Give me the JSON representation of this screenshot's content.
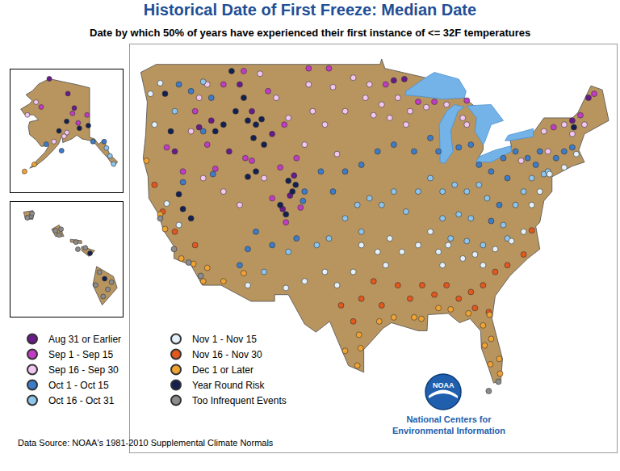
{
  "chart_data": [
    {
      "type": "scatter",
      "title": "Historical Date of First Freeze: Median Date",
      "subtitle": "Date by which 50% of years have experienced their first instance of <= 32F temperatures",
      "xlim": [
        -126,
        -66
      ],
      "ylim": [
        20,
        50.5
      ],
      "tick_labels": false,
      "grid": false,
      "legend": "bottom left",
      "marker": "circle",
      "source": "Data Source: NOAA's 1981-2010 Supplemental Climate Normals",
      "logo": {
        "text": "NOAA",
        "caption": [
          "National Centers for",
          "Environmental Information"
        ]
      },
      "series": [
        {
          "name": "Aug 31 or Earlier",
          "color": "#6a1b8a",
          "x": [
            -112.5,
            -111,
            -107.2,
            -106.3,
            -108.5,
            -116,
            -120.5,
            -117.5,
            -105.8,
            -93.5,
            -92.2,
            -71.5,
            -69.5,
            -113.8
          ],
          "y": [
            47.5,
            45.5,
            38.2,
            39.2,
            43.8,
            44.8,
            42.5,
            44.3,
            40.7,
            47.8,
            47.9,
            44.8,
            46.5,
            42.5
          ]
        },
        {
          "name": "Sep 1 - Sep 15",
          "color": "#c23bc4",
          "x": [
            -114.5,
            -112,
            -109,
            -107,
            -105.5,
            -107.5,
            -111.8,
            -116.5,
            -119.5,
            -121.5,
            -118,
            -106.8,
            -108.5,
            -105,
            -94.5,
            -90.5,
            -88.5,
            -84.5,
            -73.8,
            -68.8,
            -70.5,
            -101.5,
            -104,
            -111,
            -115.5
          ],
          "y": [
            47.5,
            48.5,
            47,
            44.5,
            42,
            41.3,
            42,
            43,
            41,
            42.8,
            45.5,
            37.2,
            39,
            38.3,
            47.5,
            46.2,
            46.2,
            46.3,
            44.3,
            46.8,
            45.2,
            48.7,
            48.7,
            41.8,
            41.2
          ]
        },
        {
          "name": "Sep 16 - Sep 30",
          "color": "#f2c6f0",
          "x": [
            -104,
            -101,
            -98.5,
            -97,
            -99.5,
            -102,
            -103.5,
            -96.5,
            -95,
            -93,
            -91.5,
            -89.5,
            -87,
            -85,
            -84.5,
            -72.5,
            -71.5,
            -70,
            -75,
            -74.5,
            -106.5,
            -108,
            -110,
            -116.5,
            -117.5,
            -118.5,
            -117,
            -114.5,
            -112.5,
            -109.5,
            -104.5,
            -100.5,
            -96,
            -94,
            -92,
            -77.8
          ],
          "y": [
            47.5,
            47.3,
            48,
            46.5,
            45.5,
            44.5,
            45.5,
            47.5,
            46,
            46.5,
            45.5,
            45.8,
            46,
            45,
            44.5,
            44.5,
            43.8,
            44.5,
            44,
            42.5,
            45,
            46.5,
            48.3,
            47.5,
            46.5,
            44,
            40.5,
            39.5,
            38.5,
            40.5,
            43,
            42.3,
            45.2,
            45,
            44.5,
            41.8
          ]
        },
        {
          "name": "Oct 1 - Oct 15",
          "color": "#3d7cc9",
          "x": [
            -99.5,
            -97.5,
            -95.5,
            -93.5,
            -91,
            -89,
            -88,
            -85.5,
            -84,
            -83,
            -81.5,
            -80,
            -78.5,
            -77,
            -76,
            -75.5,
            -73.5,
            -72.5,
            -71.5,
            -79.5,
            -80.5,
            -81.5,
            -102.5,
            -101,
            -104.5,
            -104.7,
            -105.5,
            -108.5,
            -111.5,
            -112.5,
            -120,
            -118.5,
            -116,
            -119.5,
            -115.8,
            -117,
            -110.5
          ],
          "y": [
            41,
            41.5,
            42.5,
            43,
            42.5,
            43.5,
            42.5,
            42.8,
            43,
            41.5,
            41,
            42,
            42.5,
            42,
            41.5,
            42.5,
            42,
            42.5,
            42.8,
            40.5,
            38.5,
            37.3,
            41,
            39.5,
            39.5,
            38.8,
            36,
            35.5,
            35.2,
            34,
            47.5,
            47,
            46.5,
            40.2,
            40.8,
            44,
            36.5
          ]
        },
        {
          "name": "Oct 16 - Oct 31",
          "color": "#8ec5ec",
          "x": [
            -98,
            -96.5,
            -95,
            -93.5,
            -92,
            -90.5,
            -89,
            -87.5,
            -86,
            -84.5,
            -83,
            -82,
            -85.5,
            -87.5,
            -84,
            -80,
            -78.5,
            -77.5,
            -76.5,
            -75,
            -74.5,
            -97.5,
            -99.5,
            -101.5,
            -103,
            -106.5,
            -109.5,
            -120.5,
            -117,
            -86.5,
            -84.5,
            -82.5,
            -79.5
          ],
          "y": [
            38.5,
            39,
            38.5,
            39.5,
            38,
            39.5,
            40.5,
            39.5,
            40,
            39.5,
            40,
            39,
            37.8,
            37.5,
            37.5,
            37,
            38.5,
            39.5,
            40.5,
            40.8,
            41,
            36.5,
            37.5,
            36,
            35.5,
            35,
            33.5,
            45.5,
            47.7,
            36,
            35.8,
            35.5,
            36
          ]
        },
        {
          "name": "Nov 1 - Nov 15",
          "color": "#e2f1fb",
          "x": [
            -97.5,
            -95.5,
            -94,
            -92.5,
            -90.5,
            -89,
            -88,
            -86.8,
            -85,
            -83.5,
            -81,
            -79,
            -77.5,
            -76.5,
            -75.5,
            -74.3,
            -72.5,
            -71,
            -98.5,
            -100.5,
            -102,
            -104.5,
            -106.8,
            -111.5,
            -123,
            -123.5,
            -122.3,
            -121.5,
            -120,
            -94.5,
            -87.5,
            -82.5
          ],
          "y": [
            35.5,
            35,
            36,
            35,
            35.5,
            36.5,
            35,
            35.5,
            34.5,
            34.8,
            35.2,
            35.8,
            36.5,
            38.5,
            39.5,
            40.8,
            41.3,
            42.3,
            33.5,
            32.5,
            33.5,
            32.8,
            32.3,
            32.5,
            44.5,
            46.8,
            47.6,
            38.6,
            37,
            34,
            34,
            34
          ]
        },
        {
          "name": "Nov 16 - Nov 30",
          "color": "#e4571d",
          "x": [
            -97.5,
            -96,
            -95,
            -93,
            -91.5,
            -90,
            -88.5,
            -87,
            -85.5,
            -84,
            -82.5,
            -81,
            -79.5,
            -98.5,
            -100,
            -118,
            -120.5,
            -122,
            -123,
            -81.8,
            -83.5,
            -77.5,
            -76.5
          ],
          "y": [
            31.5,
            32.8,
            31,
            32.5,
            31.5,
            32.5,
            31.8,
            32.5,
            31.5,
            32,
            32.5,
            33.5,
            34,
            29.8,
            31,
            35.5,
            36.5,
            38,
            40,
            30.5,
            30.8,
            34.8,
            36.6
          ]
        },
        {
          "name": "Dec 1 or Later",
          "color": "#f0a232",
          "x": [
            -97.6,
            -98,
            -95.3,
            -93.5,
            -91,
            -90.1,
            -88,
            -86.5,
            -84.3,
            -82.5,
            -81.5,
            -80.5,
            -80.4,
            -81.6,
            -82.3,
            -81.7,
            -112,
            -114.5,
            -116.5,
            -117,
            -118.2,
            -119.7,
            -121.7,
            -122.3,
            -124,
            -99.5,
            -97.8
          ],
          "y": [
            27.8,
            26.5,
            29.8,
            30.1,
            30.1,
            30,
            30.8,
            30.7,
            30.4,
            29.5,
            28.5,
            27,
            25.9,
            26.6,
            28,
            30.3,
            33.4,
            32.8,
            33.8,
            32.8,
            34.1,
            34.5,
            36.7,
            37.8,
            41.8,
            27.6,
            28.8
          ]
        },
        {
          "name": "Year Round Risk",
          "color": "#14204f",
          "x": [
            -113.5,
            -112,
            -110.5,
            -110.8,
            -109.5,
            -106.5,
            -106,
            -107.5,
            -105.6,
            -114.5,
            -113,
            -111.5,
            -115.5,
            -109.8,
            -106.8,
            -118.5,
            -119.5,
            -120,
            -111.5,
            -110.5,
            -121.7,
            -121,
            -71.3
          ],
          "y": [
            48.5,
            46.5,
            44.5,
            43.5,
            43,
            40.3,
            39.5,
            38.5,
            40,
            44.5,
            45.5,
            44.8,
            44,
            44.9,
            37.8,
            37.5,
            38.2,
            39.3,
            40.6,
            41,
            46.8,
            44,
            44.3
          ]
        },
        {
          "name": "Too Infrequent Events",
          "color": "#8c8c8c",
          "x": [
            -81.8,
            -80.6,
            -117.3,
            -122.3,
            -120.6,
            -118.8
          ],
          "y": [
            24.6,
            25.3,
            33.2,
            37.5,
            35.2,
            34.2
          ]
        }
      ]
    },
    {
      "type": "scatter",
      "xlim": [
        -172,
        -128
      ],
      "ylim": [
        50,
        73
      ],
      "tick_labels": false,
      "grid": false,
      "marker": "circle",
      "series": [
        {
          "name": "Aug 31 or Earlier",
          "color": "#6a1b8a",
          "x": [
            -149.5,
            -156.8,
            -147
          ],
          "y": [
            68.5,
            71.3,
            65.8
          ]
        },
        {
          "name": "Sep 1 - Sep 15",
          "color": "#c23bc4",
          "x": [
            -147.7,
            -145.5,
            -142,
            -160
          ],
          "y": [
            64.8,
            63,
            64.5,
            66
          ]
        },
        {
          "name": "Sep 16 - Sep 30",
          "color": "#f2c6f0",
          "x": [
            -149.9,
            -151,
            -162,
            -165.4,
            -155
          ],
          "y": [
            61.2,
            60.5,
            66.9,
            64.5,
            59.5
          ]
        },
        {
          "name": "Oct 1 - Oct 15",
          "color": "#3d7cc9",
          "x": [
            -135.3,
            -139.7,
            -152,
            -158
          ],
          "y": [
            59.5,
            59.5,
            57.8,
            59
          ]
        },
        {
          "name": "Oct 16 - Oct 31",
          "color": "#8ec5ec",
          "x": [
            -131.6,
            -134.4,
            -133
          ],
          "y": [
            55.3,
            58.3,
            56.8
          ]
        },
        {
          "name": "Dec 1 or Later",
          "color": "#f0a232",
          "x": [
            -166.5,
            -162.7
          ],
          "y": [
            53.9,
            55.2
          ]
        },
        {
          "name": "Year Round Risk",
          "color": "#14204f",
          "x": [
            -150,
            -153,
            -145,
            -141.5
          ],
          "y": [
            63.3,
            61.5,
            62,
            62.5
          ]
        }
      ]
    },
    {
      "type": "scatter",
      "xlim": [
        -160.5,
        -154.5
      ],
      "ylim": [
        18.5,
        22.5
      ],
      "tick_labels": false,
      "grid": false,
      "marker": "circle",
      "series": [
        {
          "name": "Year Round Risk",
          "color": "#14204f",
          "x": [
            -155.47,
            -156.25
          ],
          "y": [
            19.82,
            20.71
          ]
        },
        {
          "name": "Too Infrequent Events",
          "color": "#8c8c8c",
          "x": [
            -155.1,
            -155.95,
            -155.75,
            -155.55,
            -156.5,
            -157.0,
            -157.9,
            -158.1,
            -157.8,
            -159.4,
            -159.6,
            -159.35,
            -156.9,
            -155.3
          ],
          "y": [
            19.7,
            19.6,
            20.05,
            19.2,
            20.9,
            21.1,
            21.35,
            21.5,
            21.55,
            22.0,
            21.95,
            22.1,
            20.85,
            19.45
          ]
        }
      ]
    }
  ]
}
